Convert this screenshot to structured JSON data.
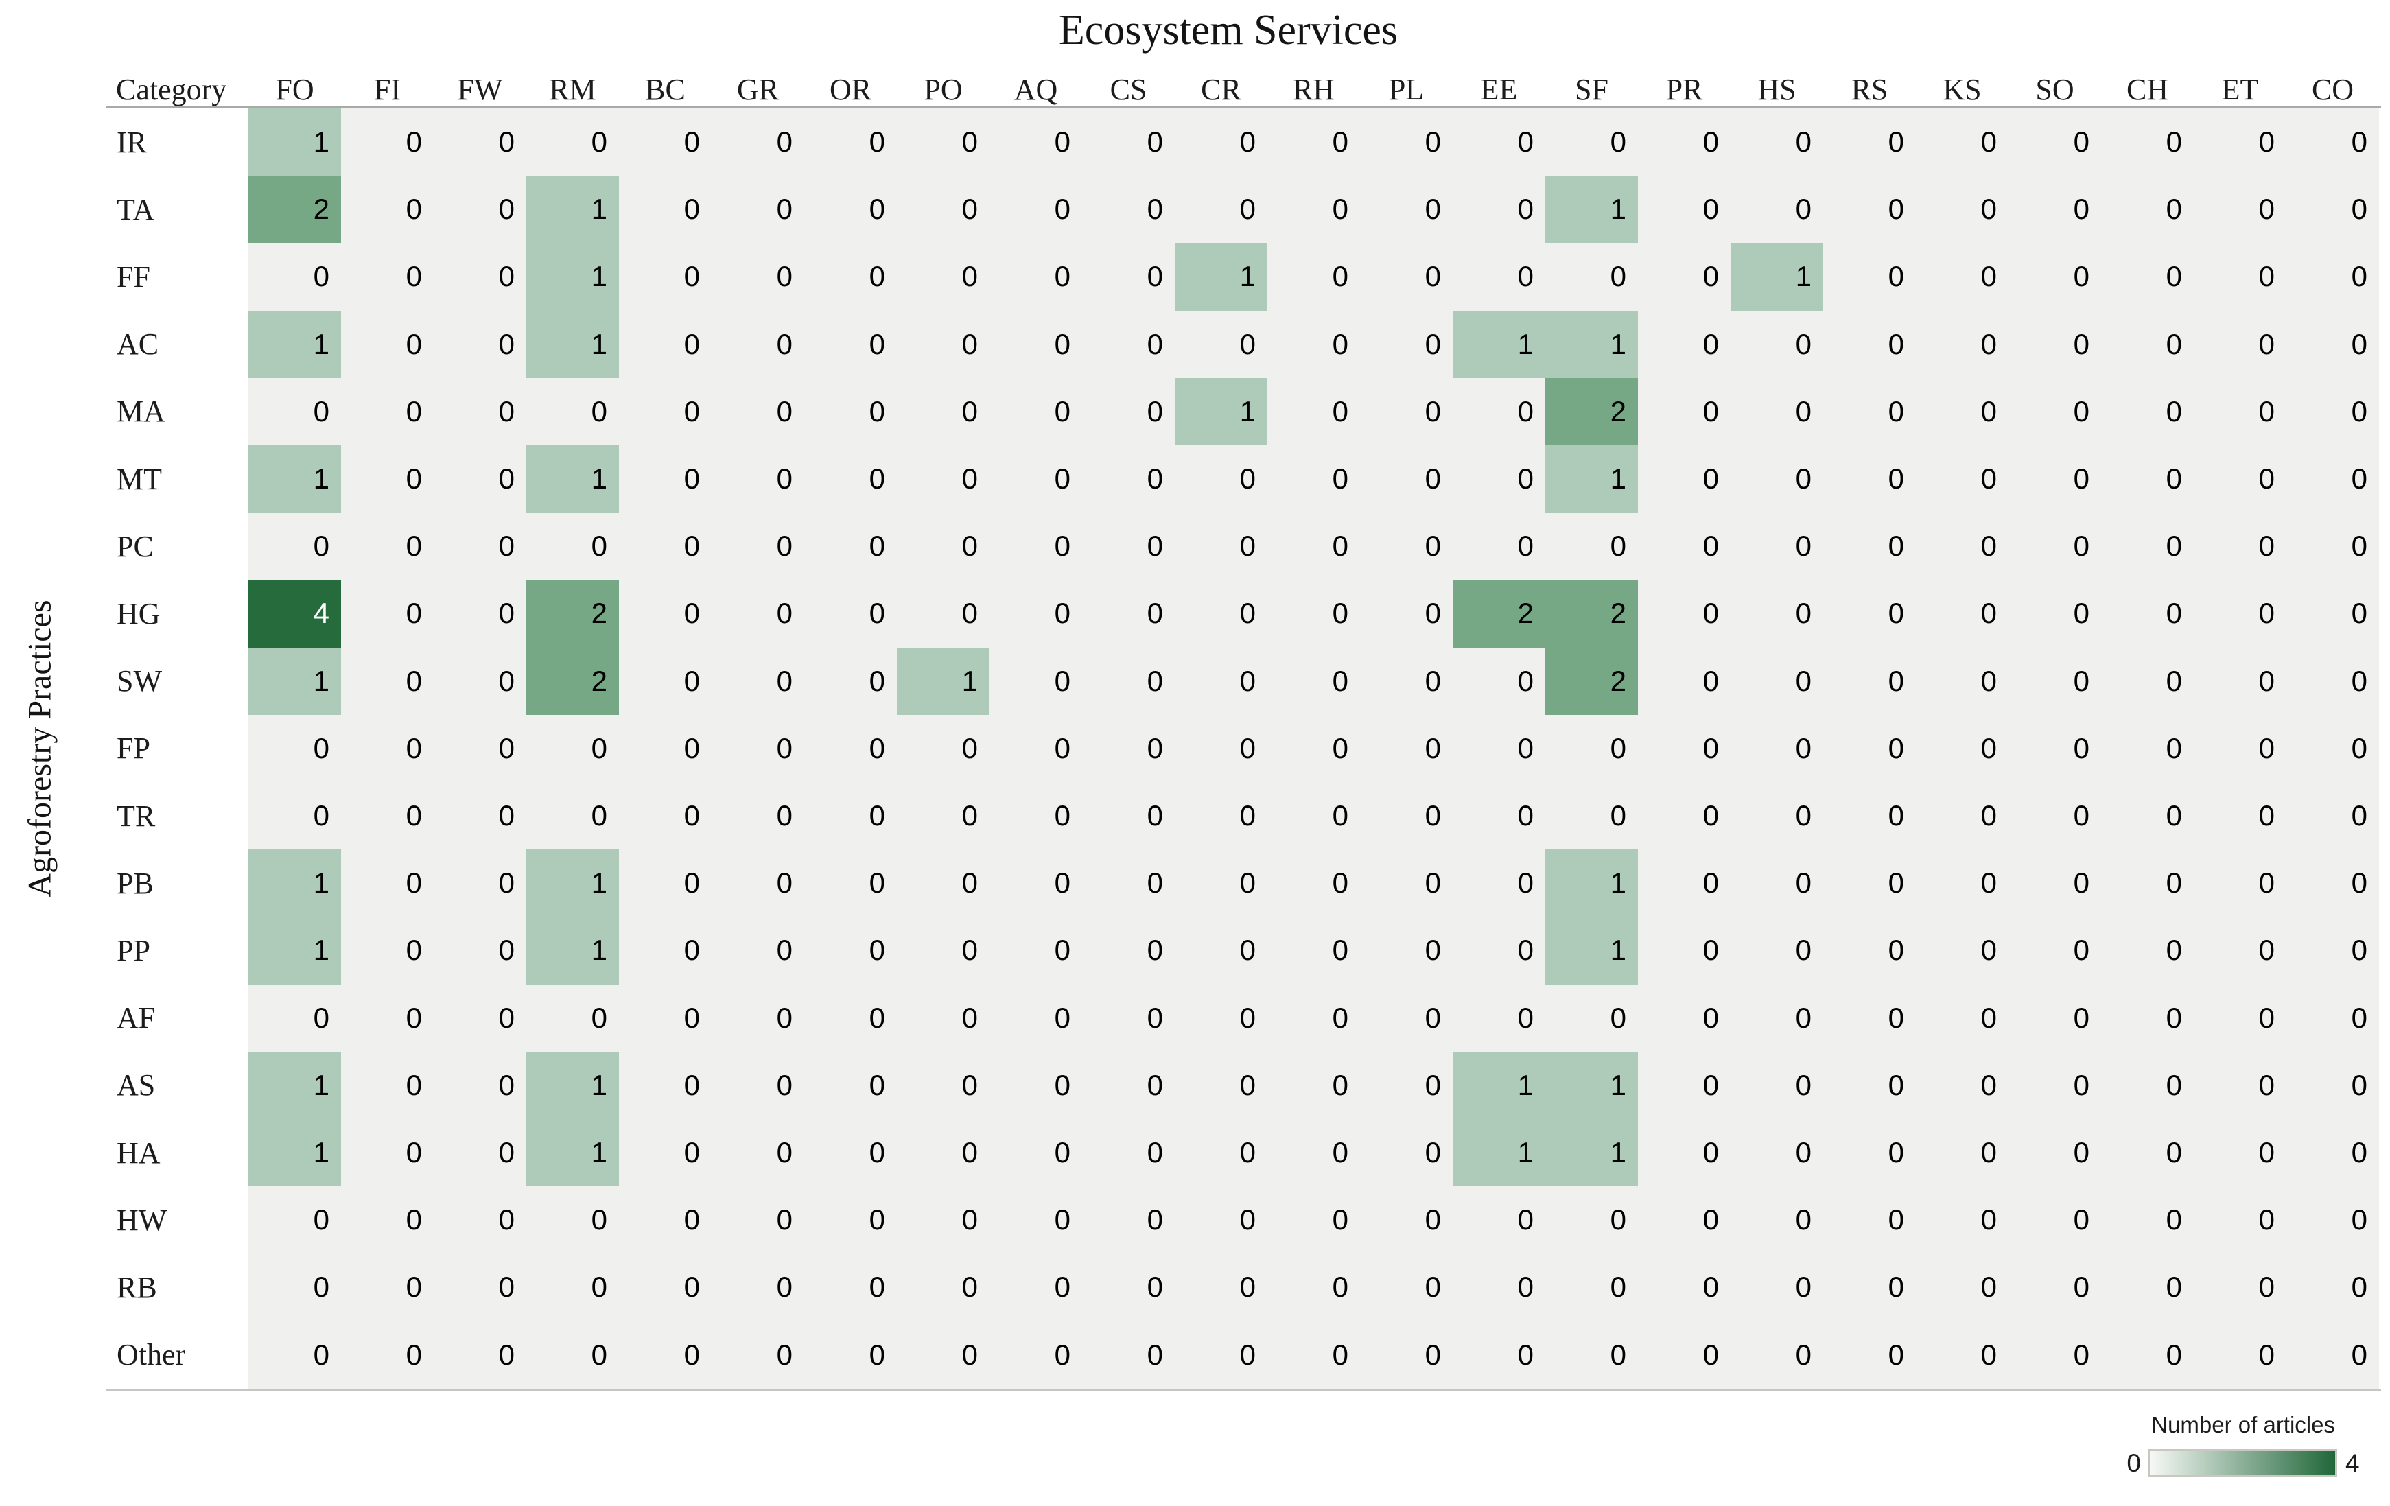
{
  "chart_data": {
    "type": "heatmap",
    "title": "Ecosystem Services",
    "ylabel": "Agroforestry Practices",
    "corner_label": "Category",
    "x_categories": [
      "FO",
      "FI",
      "FW",
      "RM",
      "BC",
      "GR",
      "OR",
      "PO",
      "AQ",
      "CS",
      "CR",
      "RH",
      "PL",
      "EE",
      "SF",
      "PR",
      "HS",
      "RS",
      "KS",
      "SO",
      "CH",
      "ET",
      "CO"
    ],
    "y_categories": [
      "IR",
      "TA",
      "FF",
      "AC",
      "MA",
      "MT",
      "PC",
      "HG",
      "SW",
      "FP",
      "TR",
      "PB",
      "PP",
      "AF",
      "AS",
      "HA",
      "HW",
      "RB",
      "Other"
    ],
    "values": [
      [
        1,
        0,
        0,
        0,
        0,
        0,
        0,
        0,
        0,
        0,
        0,
        0,
        0,
        0,
        0,
        0,
        0,
        0,
        0,
        0,
        0,
        0,
        0
      ],
      [
        2,
        0,
        0,
        1,
        0,
        0,
        0,
        0,
        0,
        0,
        0,
        0,
        0,
        0,
        1,
        0,
        0,
        0,
        0,
        0,
        0,
        0,
        0
      ],
      [
        0,
        0,
        0,
        1,
        0,
        0,
        0,
        0,
        0,
        0,
        1,
        0,
        0,
        0,
        0,
        0,
        1,
        0,
        0,
        0,
        0,
        0,
        0
      ],
      [
        1,
        0,
        0,
        1,
        0,
        0,
        0,
        0,
        0,
        0,
        0,
        0,
        0,
        1,
        1,
        0,
        0,
        0,
        0,
        0,
        0,
        0,
        0
      ],
      [
        0,
        0,
        0,
        0,
        0,
        0,
        0,
        0,
        0,
        0,
        1,
        0,
        0,
        0,
        2,
        0,
        0,
        0,
        0,
        0,
        0,
        0,
        0
      ],
      [
        1,
        0,
        0,
        1,
        0,
        0,
        0,
        0,
        0,
        0,
        0,
        0,
        0,
        0,
        1,
        0,
        0,
        0,
        0,
        0,
        0,
        0,
        0
      ],
      [
        0,
        0,
        0,
        0,
        0,
        0,
        0,
        0,
        0,
        0,
        0,
        0,
        0,
        0,
        0,
        0,
        0,
        0,
        0,
        0,
        0,
        0,
        0
      ],
      [
        4,
        0,
        0,
        2,
        0,
        0,
        0,
        0,
        0,
        0,
        0,
        0,
        0,
        2,
        2,
        0,
        0,
        0,
        0,
        0,
        0,
        0,
        0
      ],
      [
        1,
        0,
        0,
        2,
        0,
        0,
        0,
        1,
        0,
        0,
        0,
        0,
        0,
        0,
        2,
        0,
        0,
        0,
        0,
        0,
        0,
        0,
        0
      ],
      [
        0,
        0,
        0,
        0,
        0,
        0,
        0,
        0,
        0,
        0,
        0,
        0,
        0,
        0,
        0,
        0,
        0,
        0,
        0,
        0,
        0,
        0,
        0
      ],
      [
        0,
        0,
        0,
        0,
        0,
        0,
        0,
        0,
        0,
        0,
        0,
        0,
        0,
        0,
        0,
        0,
        0,
        0,
        0,
        0,
        0,
        0,
        0
      ],
      [
        1,
        0,
        0,
        1,
        0,
        0,
        0,
        0,
        0,
        0,
        0,
        0,
        0,
        0,
        1,
        0,
        0,
        0,
        0,
        0,
        0,
        0,
        0
      ],
      [
        1,
        0,
        0,
        1,
        0,
        0,
        0,
        0,
        0,
        0,
        0,
        0,
        0,
        0,
        1,
        0,
        0,
        0,
        0,
        0,
        0,
        0,
        0
      ],
      [
        0,
        0,
        0,
        0,
        0,
        0,
        0,
        0,
        0,
        0,
        0,
        0,
        0,
        0,
        0,
        0,
        0,
        0,
        0,
        0,
        0,
        0,
        0
      ],
      [
        1,
        0,
        0,
        1,
        0,
        0,
        0,
        0,
        0,
        0,
        0,
        0,
        0,
        1,
        1,
        0,
        0,
        0,
        0,
        0,
        0,
        0,
        0
      ],
      [
        1,
        0,
        0,
        1,
        0,
        0,
        0,
        0,
        0,
        0,
        0,
        0,
        0,
        1,
        1,
        0,
        0,
        0,
        0,
        0,
        0,
        0,
        0
      ],
      [
        0,
        0,
        0,
        0,
        0,
        0,
        0,
        0,
        0,
        0,
        0,
        0,
        0,
        0,
        0,
        0,
        0,
        0,
        0,
        0,
        0,
        0,
        0
      ],
      [
        0,
        0,
        0,
        0,
        0,
        0,
        0,
        0,
        0,
        0,
        0,
        0,
        0,
        0,
        0,
        0,
        0,
        0,
        0,
        0,
        0,
        0,
        0
      ],
      [
        0,
        0,
        0,
        0,
        0,
        0,
        0,
        0,
        0,
        0,
        0,
        0,
        0,
        0,
        0,
        0,
        0,
        0,
        0,
        0,
        0,
        0,
        0
      ]
    ],
    "value_range": [
      0,
      4
    ],
    "grid": false,
    "legend": {
      "title": "Number of articles",
      "min": "0",
      "max": "4",
      "position": "bottom-right"
    }
  },
  "colors": {
    "value_0": "#f0f0ef",
    "value_1": "#aecbba",
    "value_2": "#77a886",
    "value_3": "#4d8960",
    "value_4": "#256b3c",
    "text_dark": "#000000",
    "text_on_dark": "#ffffff",
    "gradient_start": "#f6f8f5",
    "gradient_end": "#21673a"
  }
}
